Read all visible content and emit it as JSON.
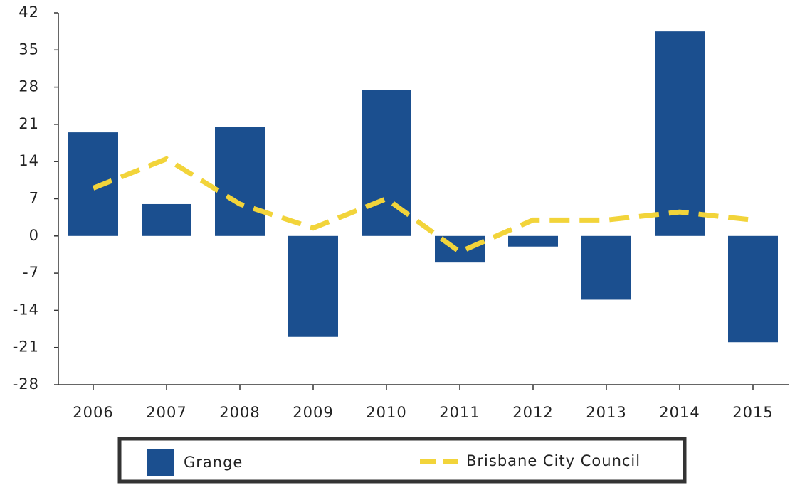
{
  "chart_data": {
    "type": "bar-line",
    "categories": [
      "2006",
      "2007",
      "2008",
      "2009",
      "2010",
      "2011",
      "2012",
      "2013",
      "2014",
      "2015"
    ],
    "series": [
      {
        "name": "Grange",
        "type": "bar",
        "color": "#1b4f8f",
        "values": [
          19.5,
          6,
          20.5,
          -19,
          27.5,
          -5,
          -2,
          -12,
          38.5,
          -20
        ]
      },
      {
        "name": "Brisbane City Council",
        "type": "line",
        "color": "#f2d43a",
        "values": [
          9,
          14.5,
          6,
          1.5,
          7,
          -3,
          3,
          3,
          4.5,
          3
        ]
      }
    ],
    "ylim": [
      -28,
      42
    ],
    "yticks": [
      -28,
      -21,
      -14,
      -7,
      0,
      7,
      14,
      21,
      28,
      35,
      42
    ],
    "grid": false,
    "legend": "bottom"
  }
}
